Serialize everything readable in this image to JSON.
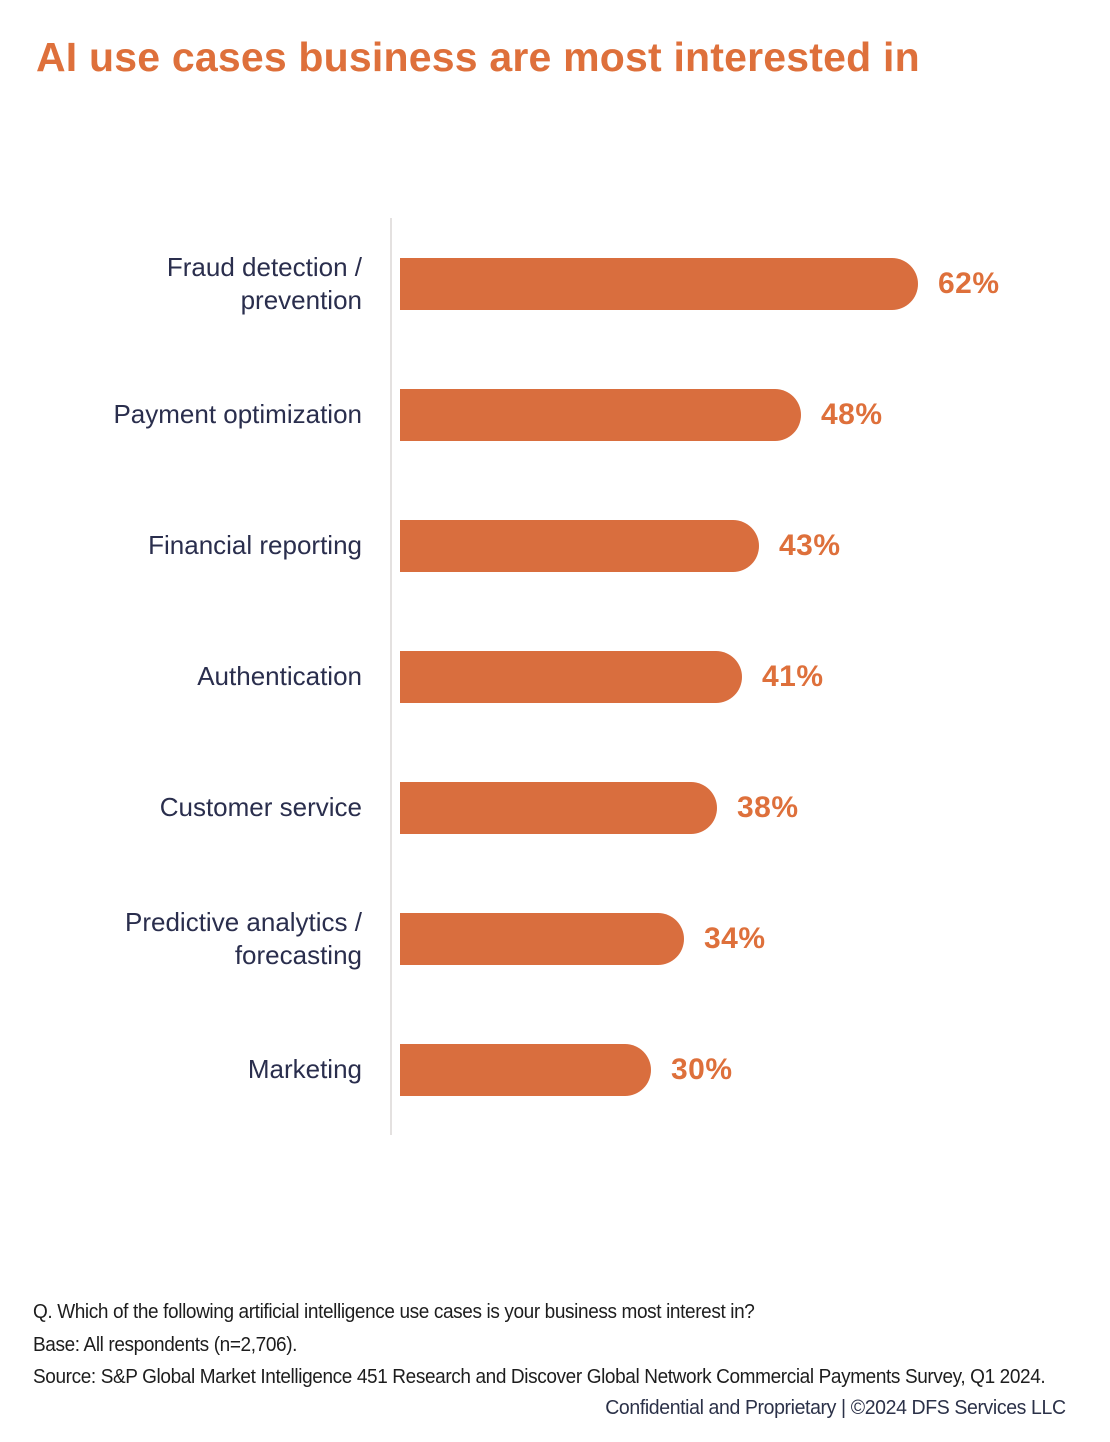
{
  "title": "AI use cases business are most interested in",
  "colors": {
    "accent_orange": "#de703b",
    "bar_orange": "#d96e3e",
    "label_navy": "#2a2e4d",
    "axis_gray": "#e4e1e0",
    "footnote_dark": "#1d1d1d",
    "confidential_navy": "#2b3148",
    "background": "#ffffff"
  },
  "chart_data": {
    "type": "bar",
    "orientation": "horizontal",
    "title": "AI use cases business are most interested in",
    "categories": [
      "Fraud detection / prevention",
      "Payment optimization",
      "Financial reporting",
      "Authentication",
      "Customer service",
      "Predictive analytics / forecasting",
      "Marketing"
    ],
    "values": [
      62,
      48,
      43,
      41,
      38,
      34,
      30
    ],
    "value_suffix": "%",
    "xlim": [
      0,
      70
    ],
    "grid": false,
    "legend": "none",
    "bar_color": "#d96e3e",
    "value_label_color": "#de703b"
  },
  "rows": [
    {
      "label": "Fraud detection /\nprevention",
      "pct": "62%"
    },
    {
      "label": "Payment optimization",
      "pct": "48%"
    },
    {
      "label": "Financial reporting",
      "pct": "43%"
    },
    {
      "label": "Authentication",
      "pct": "41%"
    },
    {
      "label": "Customer service",
      "pct": "38%"
    },
    {
      "label": "Predictive analytics /\nforecasting",
      "pct": "34%"
    },
    {
      "label": "Marketing",
      "pct": "30%"
    }
  ],
  "footer": {
    "question": "Q. Which of the following artificial intelligence use cases is your business most interest in?",
    "base": "Base: All respondents (n=2,706).",
    "source": "Source: S&P Global Market Intelligence 451 Research and Discover Global Network Commercial Payments Survey, Q1 2024.",
    "confidential": "Confidential and Proprietary | ©2024 DFS Services LLC"
  }
}
